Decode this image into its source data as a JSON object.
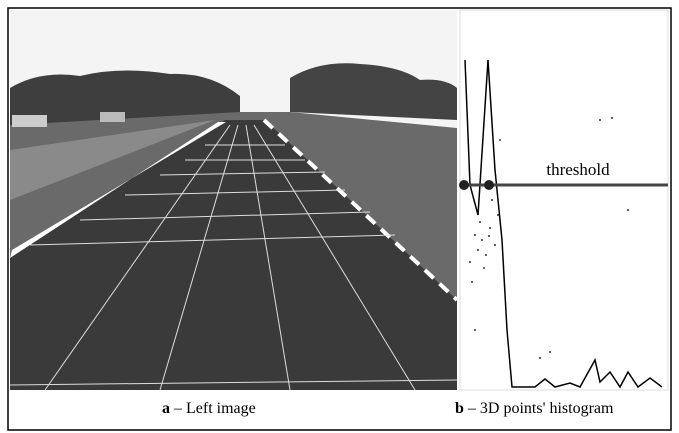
{
  "panels": [
    {
      "letter": "a",
      "caption": "– Left image"
    },
    {
      "letter": "b",
      "caption": "– 3D points' histogram"
    }
  ],
  "annotation": "threshold"
}
